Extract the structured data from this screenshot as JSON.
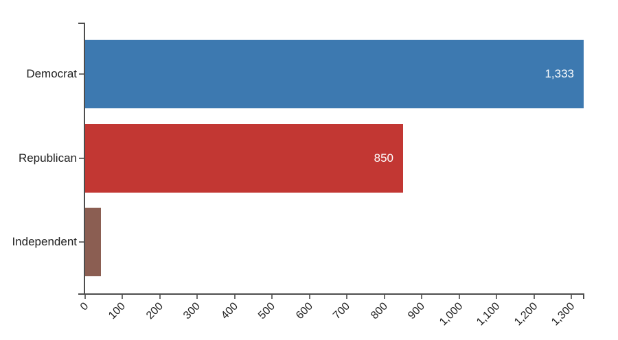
{
  "chart_data": {
    "type": "bar",
    "orientation": "horizontal",
    "title": "",
    "xlabel": "",
    "ylabel": "",
    "categories": [
      "Democrat",
      "Republican",
      "Independent"
    ],
    "values": [
      1333,
      850,
      42
    ],
    "bar_value_labels": [
      "1,333",
      "850",
      ""
    ],
    "bar_colors": [
      "#3d79b0",
      "#c23733",
      "#8b5e52"
    ],
    "xlim": [
      0,
      1333
    ],
    "x_tick_values": [
      0,
      100,
      200,
      300,
      400,
      500,
      600,
      700,
      800,
      900,
      1000,
      1100,
      1200,
      1300
    ],
    "x_tick_labels": [
      "0",
      "100",
      "200",
      "300",
      "400",
      "500",
      "600",
      "700",
      "800",
      "900",
      "1,000",
      "1,100",
      "1,200",
      "1,300"
    ],
    "grid": false,
    "legend": "none",
    "colors": {
      "background": "#ffffff",
      "axis_line": "#4d4d4d",
      "tick_mark": "#6f6f6f",
      "tick_label": "#212121",
      "category_label": "#212121",
      "value_label": "#ffffff"
    }
  }
}
